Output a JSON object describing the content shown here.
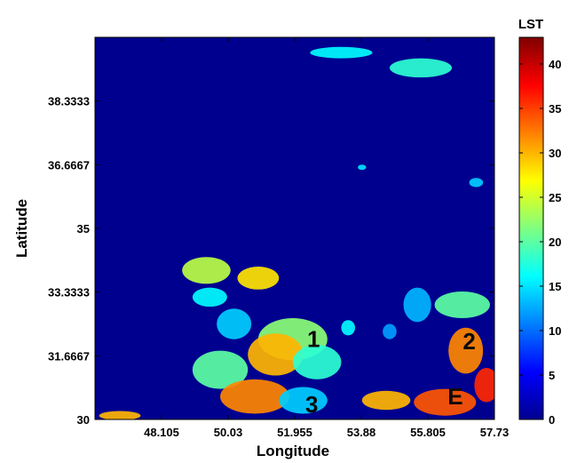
{
  "chart_data": {
    "type": "heatmap",
    "title": "",
    "xlabel": "Longitude",
    "ylabel": "Latitude",
    "xlim": [
      46.18,
      57.73
    ],
    "ylim": [
      30,
      40
    ],
    "x_ticks": [
      48.105,
      50.03,
      51.955,
      53.88,
      55.805,
      57.73
    ],
    "x_tick_labels": [
      "48.105",
      "50.03",
      "51.955",
      "53.88",
      "55.805",
      "57.73"
    ],
    "y_ticks": [
      30,
      31.6667,
      33.3333,
      35,
      36.6667,
      38.3333
    ],
    "y_tick_labels": [
      "30",
      "31.6667",
      "33.3333",
      "35",
      "36.6667",
      "38.3333"
    ],
    "colorbar": {
      "title": "LST",
      "colormap": "jet",
      "range": [
        0,
        43
      ],
      "ticks": [
        0,
        5,
        10,
        15,
        20,
        25,
        30,
        35,
        40
      ],
      "tick_labels": [
        "0",
        "5",
        "10",
        "15",
        "20",
        "25",
        "30",
        "35",
        "40"
      ]
    },
    "background_value": 0,
    "grid": false,
    "annotations": [
      {
        "text": "1",
        "lon": 52.5,
        "lat": 32.1
      },
      {
        "text": "2",
        "lon": 57.0,
        "lat": 32.05
      },
      {
        "text": "3",
        "lon": 52.45,
        "lat": 30.4
      },
      {
        "text": "E",
        "lon": 56.6,
        "lat": 30.6
      }
    ],
    "patches": [
      {
        "lon": 49.4,
        "lat": 33.9,
        "rx": 0.7,
        "ry": 0.35,
        "value": 24
      },
      {
        "lon": 50.9,
        "lat": 33.7,
        "rx": 0.6,
        "ry": 0.3,
        "value": 28
      },
      {
        "lon": 49.5,
        "lat": 33.2,
        "rx": 0.5,
        "ry": 0.25,
        "value": 16
      },
      {
        "lon": 50.2,
        "lat": 32.5,
        "rx": 0.5,
        "ry": 0.4,
        "value": 14
      },
      {
        "lon": 51.9,
        "lat": 32.1,
        "rx": 1.0,
        "ry": 0.55,
        "value": 22
      },
      {
        "lon": 51.4,
        "lat": 31.7,
        "rx": 0.8,
        "ry": 0.55,
        "value": 30
      },
      {
        "lon": 52.6,
        "lat": 31.5,
        "rx": 0.7,
        "ry": 0.45,
        "value": 18
      },
      {
        "lon": 49.8,
        "lat": 31.3,
        "rx": 0.8,
        "ry": 0.5,
        "value": 20
      },
      {
        "lon": 50.8,
        "lat": 30.6,
        "rx": 1.0,
        "ry": 0.45,
        "value": 32
      },
      {
        "lon": 52.2,
        "lat": 30.5,
        "rx": 0.7,
        "ry": 0.35,
        "value": 14
      },
      {
        "lon": 54.6,
        "lat": 30.5,
        "rx": 0.7,
        "ry": 0.25,
        "value": 30
      },
      {
        "lon": 56.3,
        "lat": 30.45,
        "rx": 0.9,
        "ry": 0.35,
        "value": 34
      },
      {
        "lon": 57.5,
        "lat": 30.9,
        "rx": 0.35,
        "ry": 0.45,
        "value": 36
      },
      {
        "lon": 56.9,
        "lat": 31.8,
        "rx": 0.5,
        "ry": 0.6,
        "value": 32
      },
      {
        "lon": 55.5,
        "lat": 33.0,
        "rx": 0.4,
        "ry": 0.45,
        "value": 13
      },
      {
        "lon": 56.8,
        "lat": 33.0,
        "rx": 0.8,
        "ry": 0.35,
        "value": 20
      },
      {
        "lon": 46.9,
        "lat": 30.1,
        "rx": 0.6,
        "ry": 0.12,
        "value": 30
      },
      {
        "lon": 53.3,
        "lat": 39.6,
        "rx": 0.9,
        "ry": 0.15,
        "value": 16
      },
      {
        "lon": 55.6,
        "lat": 39.2,
        "rx": 0.9,
        "ry": 0.25,
        "value": 18
      },
      {
        "lon": 53.9,
        "lat": 36.6,
        "rx": 0.12,
        "ry": 0.07,
        "value": 15
      },
      {
        "lon": 57.2,
        "lat": 36.2,
        "rx": 0.2,
        "ry": 0.12,
        "value": 14
      },
      {
        "lon": 54.7,
        "lat": 32.3,
        "rx": 0.2,
        "ry": 0.2,
        "value": 12
      },
      {
        "lon": 53.5,
        "lat": 32.4,
        "rx": 0.2,
        "ry": 0.2,
        "value": 16
      }
    ]
  }
}
